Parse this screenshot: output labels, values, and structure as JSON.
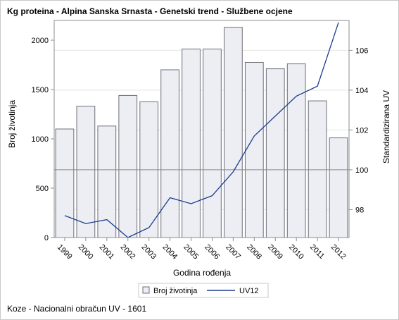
{
  "title": "Kg proteina - Alpina Sanska Srnasta - Genetski trend - Službene ocjene",
  "footnote": "Koze - Nacionalni obračun UV - 1601",
  "chart_data": {
    "type": "bar",
    "categories": [
      "1999",
      "2000",
      "2001",
      "2002",
      "2003",
      "2004",
      "2005",
      "2006",
      "2007",
      "2008",
      "2009",
      "2010",
      "2011",
      "2012"
    ],
    "series": [
      {
        "name": "Broj životinja",
        "type": "bar",
        "axis": "left",
        "values": [
          1100,
          1330,
          1130,
          1440,
          1375,
          1700,
          1910,
          1910,
          2130,
          1775,
          1710,
          1760,
          1385,
          1010
        ]
      },
      {
        "name": "UV12",
        "type": "line",
        "axis": "right",
        "values": [
          97.7,
          97.3,
          97.5,
          96.6,
          97.1,
          98.6,
          98.3,
          98.7,
          99.9,
          101.7,
          102.7,
          103.7,
          104.2,
          107.4
        ]
      }
    ],
    "xlabel": "Godina rođenja",
    "ylabel": "Broj životinja",
    "y2label": "Standardizirana UV",
    "ylim": [
      0,
      2200
    ],
    "yticks": [
      0,
      500,
      1000,
      1500,
      2000
    ],
    "y2lim": [
      96.6,
      107.5
    ],
    "y2ticks": [
      98,
      100,
      102,
      104,
      106
    ],
    "reference_line": 100,
    "grid": true,
    "legend_position": "bottom",
    "colors": {
      "bar_fill": "#eceef4",
      "bar_stroke": "#6e6e78",
      "line": "#1c3c8c",
      "grid": "#e4e4e4",
      "axis": "#8c8c8c",
      "reference": "#8c8c8c"
    }
  }
}
